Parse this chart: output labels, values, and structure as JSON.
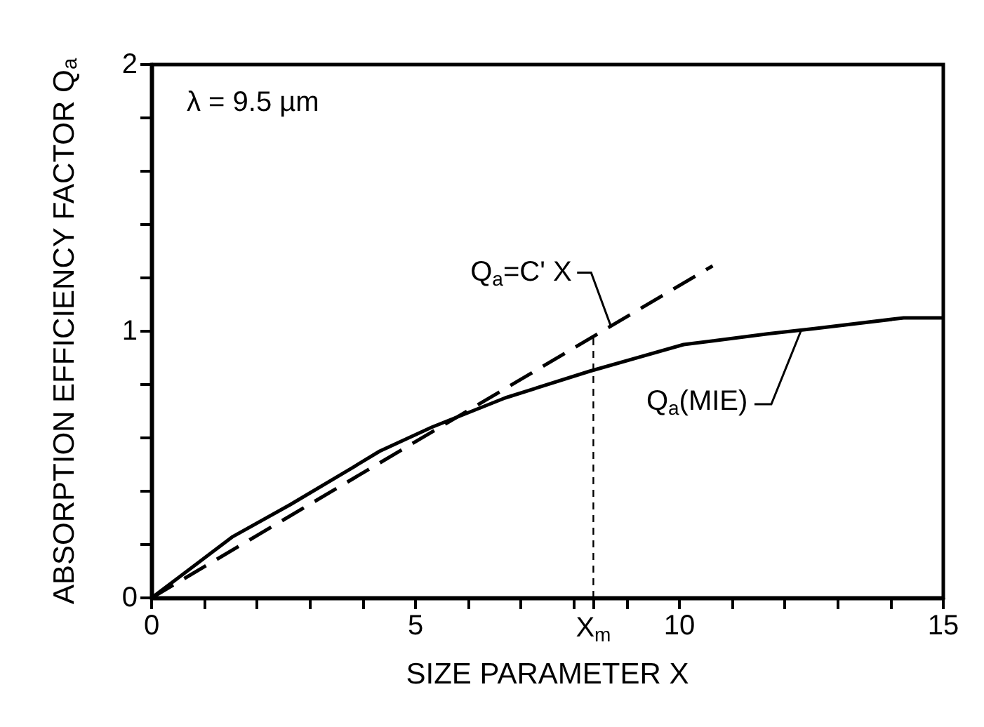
{
  "chart_data": {
    "type": "line",
    "xlabel": "SIZE PARAMETER X",
    "ylabel": "ABSORPTION EFFICIENCY FACTOR Q$_{a}$",
    "series": [
      {
        "color": "#000000",
        "line_style": "solid",
        "x": [
          0,
          1.54,
          2.63,
          3.82,
          4.32,
          5.31,
          6.7,
          8.3,
          10.08,
          11.67,
          12.56,
          14.25,
          15
        ],
        "values": [
          0,
          0.23,
          0.35,
          0.49,
          0.55,
          0.64,
          0.75,
          0.85,
          0.95,
          0.99,
          1.01,
          1.05,
          1.05
        ]
      },
      {
        "color": "#000000",
        "line_style": "dashed",
        "x": [
          0,
          10.63
        ],
        "values": [
          0,
          1.245
        ]
      },
      {
        "color": "#000000",
        "line_style": "dotted",
        "x": [
          8.37,
          8.37
        ],
        "values": [
          0,
          0.98
        ]
      }
    ],
    "xlim": [
      0,
      15
    ],
    "ylim": [
      0,
      2
    ],
    "xticks": [
      0,
      {
        "value": 1,
        "label": null
      },
      {
        "value": 2,
        "label": null
      },
      {
        "value": 3,
        "label": null
      },
      {
        "value": 4,
        "label": null
      },
      5,
      {
        "value": 6,
        "label": null
      },
      {
        "value": 7,
        "label": null
      },
      {
        "value": 8,
        "label": null
      },
      {
        "value": 8.37,
        "label": "X$_{m}$"
      },
      {
        "value": 9,
        "label": null
      },
      10,
      {
        "value": 11,
        "label": null
      },
      {
        "value": 12,
        "label": null
      },
      {
        "value": 13,
        "label": null
      },
      {
        "value": 14,
        "label": null
      },
      15
    ],
    "yticks": [
      0,
      {
        "value": 0.2,
        "label": null
      },
      {
        "value": 0.4,
        "label": null
      },
      {
        "value": 0.6,
        "label": null
      },
      {
        "value": 0.8,
        "label": null
      },
      1,
      {
        "value": 1.2,
        "label": null
      },
      {
        "value": 1.4,
        "label": null
      },
      {
        "value": 1.6,
        "label": null
      },
      {
        "value": 1.8,
        "label": null
      },
      2
    ],
    "annotations": [
      "λ = 9.5 µm",
      {
        "text": "Q$_{a}$=C' X",
        "x": 8.7,
        "y": 1.02
      },
      {
        "text": "Q$_{a}$(MIE)",
        "x": 12.3,
        "y": 1.0
      }
    ],
    "grid": false,
    "marker": "none"
  }
}
